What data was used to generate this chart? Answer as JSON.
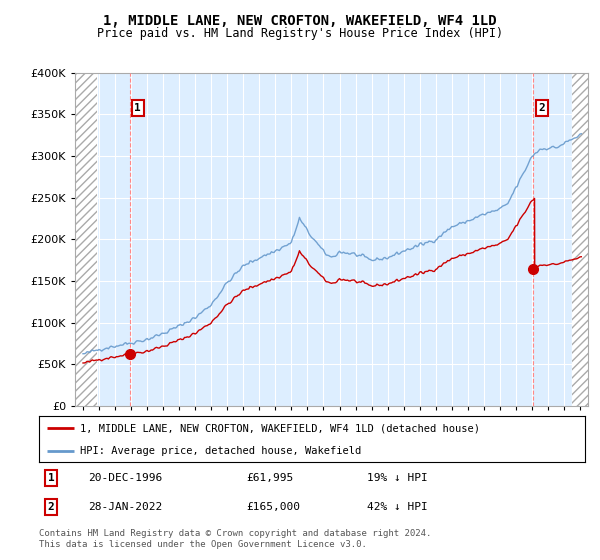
{
  "title": "1, MIDDLE LANE, NEW CROFTON, WAKEFIELD, WF4 1LD",
  "subtitle": "Price paid vs. HM Land Registry's House Price Index (HPI)",
  "sale1_date": "20-DEC-1996",
  "sale1_price": 61995,
  "sale1_label": "19% ↓ HPI",
  "sale1_year": 1997.0,
  "sale2_date": "28-JAN-2022",
  "sale2_price": 165000,
  "sale2_label": "42% ↓ HPI",
  "sale2_year": 2022.1,
  "legend1": "1, MIDDLE LANE, NEW CROFTON, WAKEFIELD, WF4 1LD (detached house)",
  "legend2": "HPI: Average price, detached house, Wakefield",
  "footer": "Contains HM Land Registry data © Crown copyright and database right 2024.\nThis data is licensed under the Open Government Licence v3.0.",
  "ylim": [
    0,
    400000
  ],
  "ylabel_ticks": [
    0,
    50000,
    100000,
    150000,
    200000,
    250000,
    300000,
    350000,
    400000
  ],
  "ylabel_labels": [
    "£0",
    "£50K",
    "£100K",
    "£150K",
    "£200K",
    "£250K",
    "£300K",
    "£350K",
    "£400K"
  ],
  "hpi_color": "#6699cc",
  "sale_color": "#cc0000",
  "marker_color": "#cc0000",
  "bg_color": "#ffffff",
  "plot_bg_color": "#ddeeff",
  "grid_color": "#ffffff",
  "hatch_color": "#bbbbbb"
}
